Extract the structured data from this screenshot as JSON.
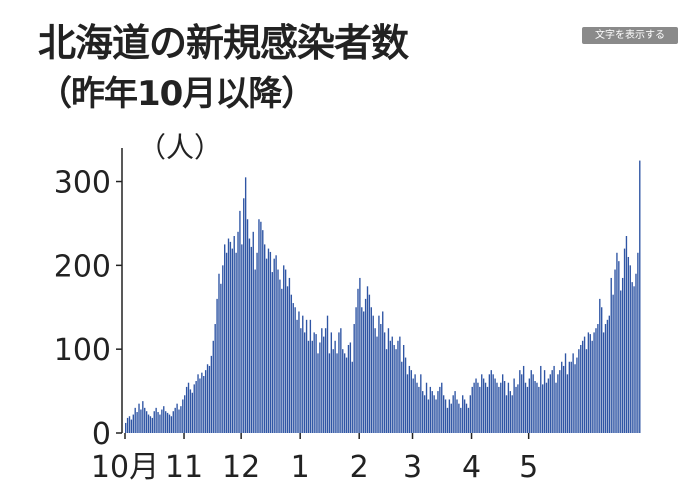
{
  "header": {
    "title": "北海道の新規感染者数",
    "subtitle": "（昨年10月以降）"
  },
  "toggle_button": {
    "label": "文字を表示する"
  },
  "colors": {
    "bar": "#2f55a4",
    "axis": "#222222",
    "text": "#222222",
    "button_bg": "#8a8a8a"
  },
  "chart_data": {
    "type": "bar",
    "title": "北海道の新規感染者数",
    "subtitle": "（昨年10月以降）",
    "ylabel": "（人）",
    "ylim": [
      0,
      340
    ],
    "yticks": [
      0,
      100,
      200,
      300
    ],
    "grid": false,
    "legend": "none",
    "xticks": [
      {
        "label": "10月",
        "index": 0
      },
      {
        "label": "11",
        "index": 31
      },
      {
        "label": "12",
        "index": 61
      },
      {
        "label": "1",
        "index": 92
      },
      {
        "label": "2",
        "index": 123
      },
      {
        "label": "3",
        "index": 151
      },
      {
        "label": "4",
        "index": 182
      },
      {
        "label": "5",
        "index": 212
      }
    ],
    "values": [
      12,
      18,
      20,
      16,
      22,
      30,
      25,
      35,
      28,
      38,
      30,
      26,
      22,
      20,
      18,
      26,
      30,
      25,
      22,
      28,
      32,
      26,
      24,
      22,
      20,
      26,
      30,
      35,
      28,
      32,
      40,
      45,
      55,
      60,
      52,
      48,
      58,
      62,
      70,
      65,
      72,
      68,
      75,
      82,
      80,
      92,
      110,
      130,
      160,
      190,
      178,
      200,
      225,
      215,
      232,
      228,
      220,
      235,
      215,
      240,
      265,
      225,
      280,
      305,
      255,
      232,
      222,
      240,
      195,
      215,
      255,
      252,
      242,
      225,
      208,
      220,
      216,
      192,
      208,
      212,
      195,
      183,
      172,
      200,
      195,
      175,
      185,
      165,
      155,
      150,
      135,
      145,
      125,
      140,
      120,
      135,
      110,
      135,
      110,
      120,
      118,
      95,
      108,
      125,
      115,
      125,
      140,
      95,
      120,
      100,
      110,
      95,
      120,
      125,
      100,
      95,
      90,
      105,
      108,
      85,
      130,
      150,
      172,
      185,
      150,
      145,
      160,
      175,
      165,
      150,
      140,
      125,
      115,
      140,
      130,
      145,
      120,
      100,
      125,
      110,
      115,
      105,
      100,
      110,
      115,
      85,
      105,
      90,
      70,
      80,
      75,
      65,
      70,
      60,
      55,
      70,
      50,
      45,
      60,
      40,
      55,
      50,
      45,
      40,
      50,
      55,
      60,
      45,
      40,
      30,
      40,
      35,
      45,
      50,
      40,
      35,
      30,
      45,
      40,
      35,
      30,
      45,
      55,
      60,
      65,
      60,
      55,
      70,
      65,
      60,
      55,
      70,
      75,
      70,
      65,
      60,
      55,
      60,
      70,
      62,
      45,
      60,
      50,
      45,
      65,
      55,
      58,
      75,
      70,
      80,
      60,
      55,
      65,
      75,
      70,
      62,
      60,
      55,
      80,
      58,
      75,
      60,
      65,
      70,
      75,
      80,
      60,
      70,
      75,
      85,
      80,
      95,
      70,
      85,
      85,
      95,
      82,
      90,
      100,
      105,
      110,
      115,
      100,
      120,
      118,
      110,
      120,
      125,
      130,
      160,
      150,
      120,
      130,
      135,
      140,
      185,
      165,
      195,
      215,
      205,
      170,
      185,
      220,
      235,
      210,
      200,
      180,
      175,
      190,
      215,
      325
    ]
  }
}
